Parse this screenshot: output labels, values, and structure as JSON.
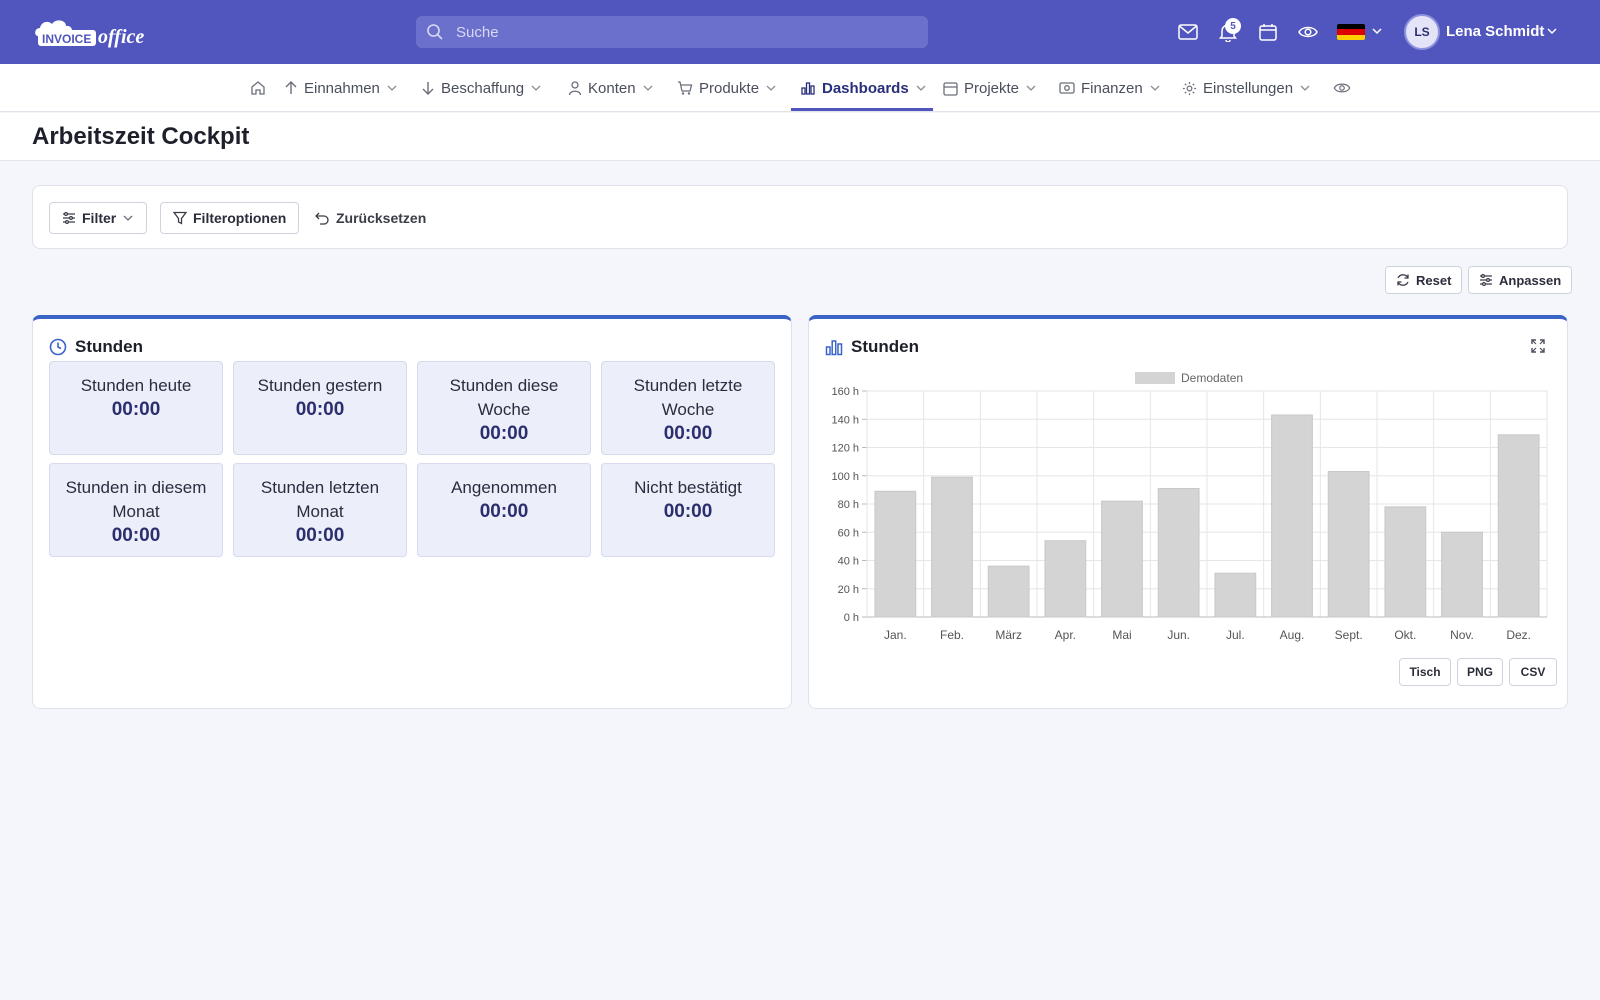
{
  "app": {
    "logo_text": "INVOICE office",
    "brand_color": "#5156be",
    "accent_color": "#3a64c8"
  },
  "topbar": {
    "search_placeholder": "Suche",
    "notification_count": "5",
    "language_flag": "de",
    "user_initials": "LS",
    "user_name": "Lena Schmidt"
  },
  "nav": {
    "items": [
      {
        "label": "Einnahmen",
        "icon": "arrow-up-icon"
      },
      {
        "label": "Beschaffung",
        "icon": "arrow-down-icon"
      },
      {
        "label": "Konten",
        "icon": "user-icon"
      },
      {
        "label": "Produkte",
        "icon": "cart-icon"
      },
      {
        "label": "Dashboards",
        "icon": "bar-chart-icon",
        "active": true
      },
      {
        "label": "Projekte",
        "icon": "calendar-icon"
      },
      {
        "label": "Finanzen",
        "icon": "money-icon"
      },
      {
        "label": "Einstellungen",
        "icon": "gear-icon"
      }
    ]
  },
  "page": {
    "title": "Arbeitszeit Cockpit"
  },
  "filters": {
    "filter_label": "Filter",
    "options_label": "Filteroptionen",
    "reset_label": "Zurücksetzen"
  },
  "toolbar": {
    "reset_label": "Reset",
    "customize_label": "Anpassen"
  },
  "hours_panel": {
    "title": "Stunden",
    "stats": [
      {
        "label": "Stunden heute",
        "value": "00:00"
      },
      {
        "label": "Stunden gestern",
        "value": "00:00"
      },
      {
        "label": "Stunden diese Woche",
        "value": "00:00"
      },
      {
        "label": "Stunden letzte Woche",
        "value": "00:00"
      },
      {
        "label": "Stunden in diesem Monat",
        "value": "00:00"
      },
      {
        "label": "Stunden letzten Monat",
        "value": "00:00"
      },
      {
        "label": "Angenommen",
        "value": "00:00"
      },
      {
        "label": "Nicht bestätigt",
        "value": "00:00"
      }
    ]
  },
  "chart_panel": {
    "title": "Stunden",
    "buttons": {
      "table": "Tisch",
      "png": "PNG",
      "csv": "CSV"
    }
  },
  "chart_data": {
    "type": "bar",
    "legend": {
      "placement": "top-center"
    },
    "categories": [
      "Jan.",
      "Feb.",
      "März",
      "Apr.",
      "Mai",
      "Jun.",
      "Jul.",
      "Aug.",
      "Sept.",
      "Okt.",
      "Nov.",
      "Dez."
    ],
    "series": [
      {
        "name": "Demodaten",
        "color": "#d4d4d4",
        "values": [
          89,
          99,
          36,
          54,
          82,
          91,
          31,
          143,
          103,
          78,
          60,
          129
        ]
      }
    ],
    "ylim": [
      0,
      160
    ],
    "y_ticks": [
      "0 h",
      "20 h",
      "40 h",
      "60 h",
      "80 h",
      "100 h",
      "120 h",
      "140 h",
      "160 h"
    ],
    "grid": true
  }
}
